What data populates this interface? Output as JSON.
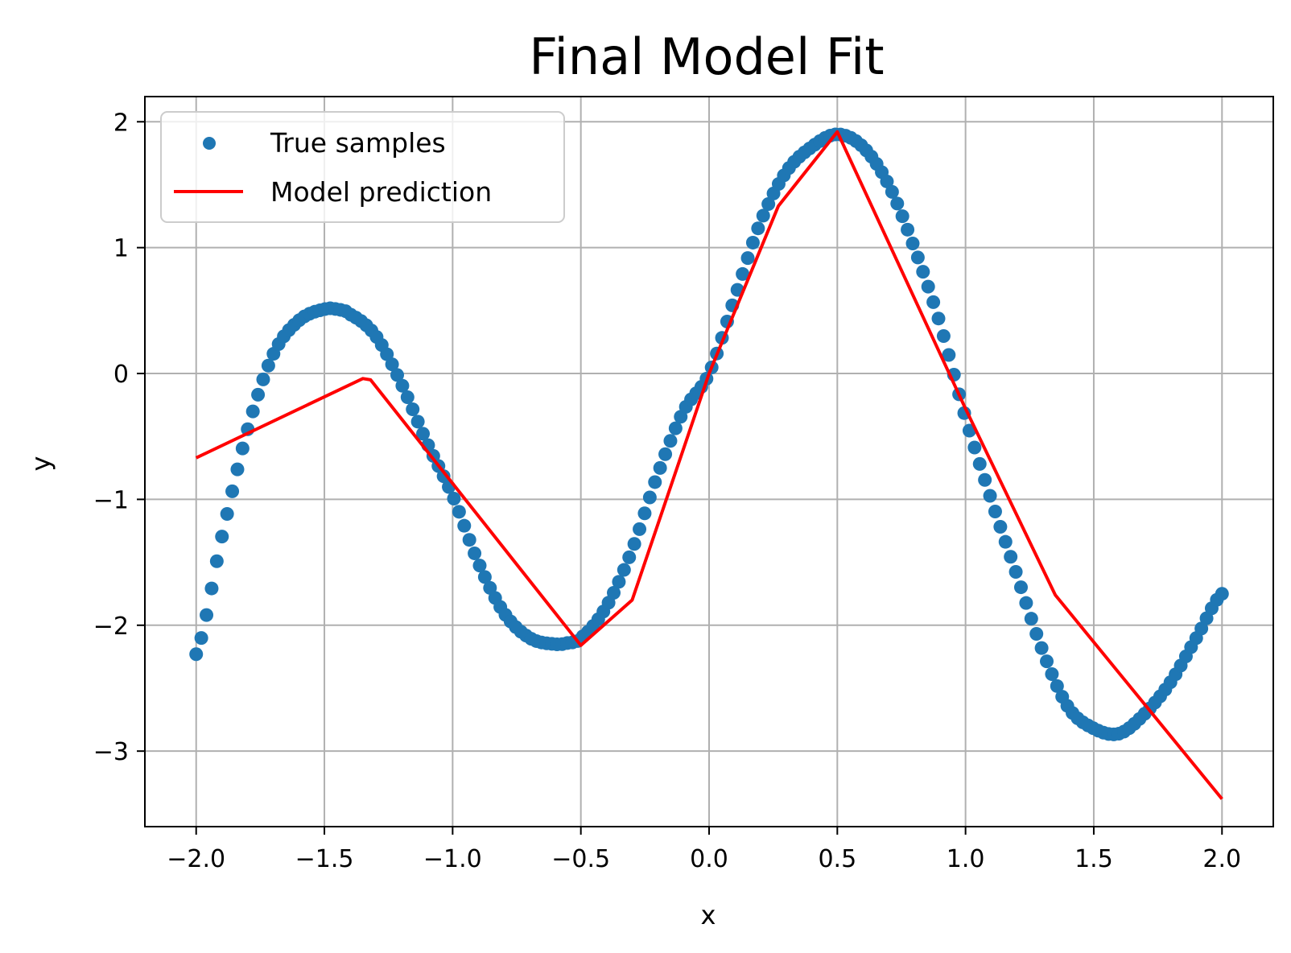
{
  "chart_data": {
    "type": "scatter",
    "title": "Final Model Fit",
    "xlabel": "x",
    "ylabel": "y",
    "xlim": [
      -2.2,
      2.2
    ],
    "ylim": [
      -3.6,
      2.2
    ],
    "xticks": [
      -2.0,
      -1.5,
      -1.0,
      -0.5,
      0.0,
      0.5,
      1.0,
      1.5,
      2.0
    ],
    "xtick_labels": [
      "−2.0",
      "−1.5",
      "−1.0",
      "−0.5",
      "0.0",
      "0.5",
      "1.0",
      "1.5",
      "2.0"
    ],
    "yticks": [
      -3,
      -2,
      -1,
      0,
      1,
      2
    ],
    "ytick_labels": [
      "−3",
      "−2",
      "−1",
      "0",
      "1",
      "2"
    ],
    "grid": true,
    "legend_position": "top-left",
    "series": [
      {
        "name": "True samples",
        "kind": "scatter",
        "color": "#1f77b4",
        "x_range": [
          -2.0,
          2.0
        ],
        "n_points": 200,
        "x": [
          -2.0,
          -1.9,
          -1.8,
          -1.7,
          -1.6,
          -1.5,
          -1.45,
          -1.4,
          -1.3,
          -1.2,
          -1.1,
          -1.0,
          -0.9,
          -0.8,
          -0.7,
          -0.6,
          -0.55,
          -0.5,
          -0.4,
          -0.3,
          -0.2,
          -0.1,
          0.0,
          0.1,
          0.2,
          0.3,
          0.4,
          0.5,
          0.6,
          0.7,
          0.8,
          0.9,
          1.0,
          1.1,
          1.2,
          1.3,
          1.4,
          1.5,
          1.6,
          1.7,
          1.8,
          1.9,
          2.0
        ],
        "y": [
          -2.23,
          -1.3,
          -0.45,
          0.15,
          0.42,
          0.51,
          0.51,
          0.47,
          0.3,
          -0.08,
          -0.55,
          -0.97,
          -1.5,
          -1.9,
          -2.1,
          -2.15,
          -2.14,
          -2.1,
          -1.85,
          -1.4,
          -0.8,
          -0.3,
          0.0,
          0.6,
          1.2,
          1.6,
          1.8,
          1.9,
          1.8,
          1.5,
          1.0,
          0.4,
          -0.35,
          -1.0,
          -1.6,
          -2.2,
          -2.65,
          -2.82,
          -2.86,
          -2.7,
          -2.45,
          -2.1,
          -1.75
        ]
      },
      {
        "name": "Model prediction",
        "kind": "line",
        "color": "#ff0000",
        "x": [
          -2.0,
          -1.35,
          -1.32,
          -0.5,
          -0.3,
          0.0,
          0.27,
          0.5,
          1.0,
          1.35,
          2.0
        ],
        "y": [
          -0.67,
          -0.04,
          -0.05,
          -2.16,
          -1.8,
          0.0,
          1.33,
          1.92,
          -0.28,
          -1.76,
          -3.38
        ]
      }
    ]
  }
}
